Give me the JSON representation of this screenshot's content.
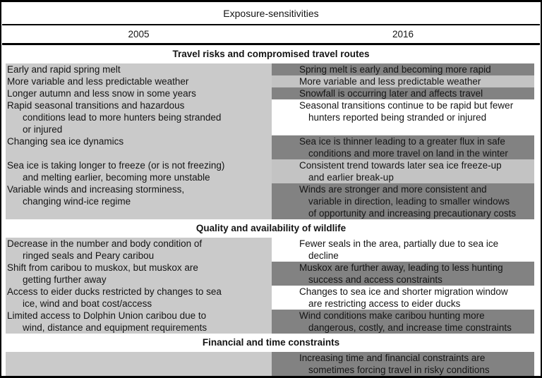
{
  "table": {
    "title": "Exposure-sensitivities",
    "col_2005": "2005",
    "col_2016": "2016"
  },
  "colors": {
    "left_block": "#cacaca",
    "band_dark": "#828282",
    "band_light": "#c3c3c3",
    "band_white": "transparent",
    "border": "#000000"
  },
  "sections": [
    {
      "header": "Travel risks and compromised travel routes",
      "rows": [
        {
          "left": [
            "Early and rapid spring melt"
          ],
          "right": [
            "Spring melt is early and becoming more rapid"
          ],
          "tone": "dark",
          "lines": 1
        },
        {
          "left": [
            "More variable and less predictable weather"
          ],
          "right": [
            "More variable and less predictable weather"
          ],
          "tone": "light",
          "lines": 1
        },
        {
          "left": [
            "Longer autumn and less snow in some years"
          ],
          "right": [
            "Snowfall is occurring later and affects travel"
          ],
          "tone": "dark",
          "lines": 1
        },
        {
          "left": [
            "Rapid seasonal transitions and hazardous",
            "conditions lead to more hunters being stranded",
            "or injured"
          ],
          "right": [
            "Seasonal transitions continue to be rapid but fewer",
            "hunters reported being stranded or injured"
          ],
          "tone": "white",
          "lines": 3
        },
        {
          "left": [
            "Changing sea ice dynamics"
          ],
          "right": [
            "Sea ice is thinner leading to a greater flux in safe",
            "conditions and more travel on land in the winter"
          ],
          "tone": "dark",
          "lines": 2
        },
        {
          "left": [
            "Sea ice is taking longer to freeze (or is not freezing)",
            "and melting earlier, becoming more unstable"
          ],
          "right": [
            "Consistent trend towards later sea ice freeze-up",
            "and earlier break-up"
          ],
          "tone": "light",
          "lines": 2
        },
        {
          "left": [
            "Variable winds and increasing storminess,",
            "changing wind-ice regime"
          ],
          "right": [
            "Winds are stronger and more consistent and",
            "variable in direction, leading to smaller windows",
            "of opportunity and increasing precautionary costs"
          ],
          "tone": "dark",
          "lines": 3
        }
      ]
    },
    {
      "header": "Quality and availability of wildlife",
      "rows": [
        {
          "left": [
            "Decrease in the number and body condition of",
            "ringed seals and Peary caribou"
          ],
          "right": [
            "Fewer seals in the area, partially due to sea ice",
            "decline"
          ],
          "tone": "white",
          "lines": 2
        },
        {
          "left": [
            "Shift from caribou to muskox, but muskox are",
            "getting further away"
          ],
          "right": [
            "Muskox are further away, leading to less hunting",
            "success and access constraints"
          ],
          "tone": "dark",
          "lines": 2
        },
        {
          "left": [
            "Access to eider ducks restricted by changes to sea",
            "ice, wind and boat cost/access"
          ],
          "right": [
            "Changes to sea ice and shorter migration window",
            "are restricting access to eider ducks"
          ],
          "tone": "white",
          "lines": 2
        },
        {
          "left": [
            "Limited access to Dolphin Union caribou due to",
            "wind, distance and equipment requirements"
          ],
          "right": [
            "Wind conditions make caribou hunting more",
            "dangerous, costly, and increase time constraints"
          ],
          "tone": "dark",
          "lines": 2
        }
      ]
    },
    {
      "header": "Financial and time constraints",
      "rows": [
        {
          "left": [],
          "right": [
            "Increasing time and financial constraints are",
            "sometimes forcing travel in risky conditions"
          ],
          "tone": "dark",
          "lines": 2
        }
      ]
    }
  ]
}
